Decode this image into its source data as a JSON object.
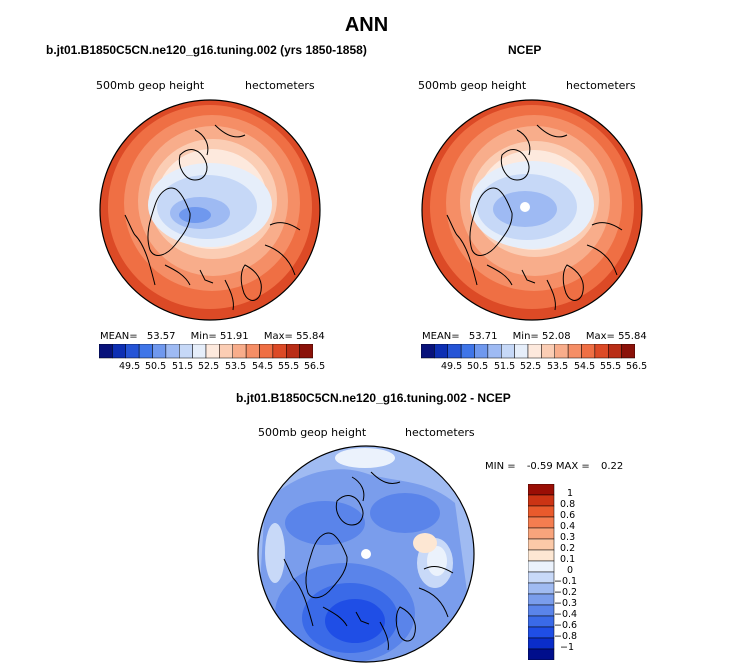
{
  "figure": {
    "title": "ANN"
  },
  "colors": {
    "abs_palette": [
      "#08127a",
      "#0d2fb3",
      "#2554d6",
      "#3f75e8",
      "#6f98ee",
      "#9ebaf3",
      "#c6d8f7",
      "#e6eefa",
      "#fde9dd",
      "#fbcdb4",
      "#f8ad8b",
      "#f58e66",
      "#ef6f44",
      "#dc4a26",
      "#b92d16",
      "#8a1109"
    ],
    "diff_palette": [
      "#000e8c",
      "#0a2dc9",
      "#1f4ee6",
      "#3a6ae8",
      "#5a84ea",
      "#7a9dec",
      "#a0bbf2",
      "#c8d9f8",
      "#ebf2fc",
      "#fde7d3",
      "#fbc9a8",
      "#f8a47c",
      "#f47d50",
      "#e95a2c",
      "#cc3414",
      "#9a0e05"
    ]
  },
  "chart_data": [
    {
      "type": "polar-contour-map",
      "panel_title": "b.jt01.B1850C5CN.ne120_g16.tuning.002 (yrs 1850-1858)",
      "left_label": "500mb geop height",
      "right_label": "hectometers",
      "stats": {
        "mean_label": "MEAN=",
        "mean": "53.57",
        "min_label": "Min=",
        "min": "51.91",
        "max_label": "Max=",
        "max": "55.84"
      },
      "levels": [
        "49.5",
        "50.5",
        "51.5",
        "52.5",
        "53.5",
        "54.5",
        "55.5",
        "56.5"
      ]
    },
    {
      "type": "polar-contour-map",
      "panel_title": "NCEP",
      "left_label": "500mb geop height",
      "right_label": "hectometers",
      "stats": {
        "mean_label": "MEAN=",
        "mean": "53.71",
        "min_label": "Min=",
        "min": "52.08",
        "max_label": "Max=",
        "max": "55.84"
      },
      "levels": [
        "49.5",
        "50.5",
        "51.5",
        "52.5",
        "53.5",
        "54.5",
        "55.5",
        "56.5"
      ]
    },
    {
      "type": "polar-contour-map",
      "panel_title": "b.jt01.B1850C5CN.ne120_g16.tuning.002 - NCEP",
      "left_label": "500mb geop height",
      "right_label": "hectometers",
      "stats": {
        "min_label": "MIN =",
        "min": "-0.59",
        "max_label": "MAX =",
        "max": "0.22"
      },
      "levels": [
        "1",
        "0.8",
        "0.6",
        "0.4",
        "0.3",
        "0.2",
        "0.1",
        "0",
        "−0.1",
        "−0.2",
        "−0.3",
        "−0.4",
        "−0.6",
        "−0.8",
        "−1"
      ]
    }
  ]
}
